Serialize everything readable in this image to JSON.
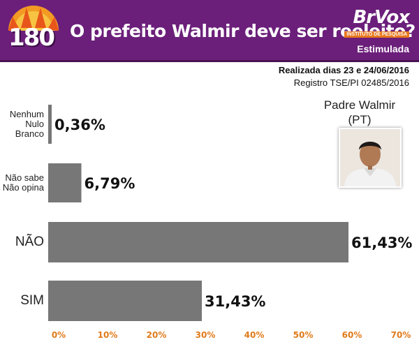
{
  "header": {
    "logo_text": "180",
    "title": "O prefeito Walmir deve ser reeleito?",
    "brand_name": "BrVox",
    "brand_sub": "INSTITUTO DE PESQUISA",
    "survey_mode": "Estimulada",
    "bg_color": "#6b1f7a"
  },
  "meta": {
    "date": "Realizada dias 23 e 24/06/2016",
    "registry": "Registro TSE/PI 02485/2016"
  },
  "candidate": {
    "name": "Padre Walmir",
    "party": "(PT)"
  },
  "chart_data": {
    "type": "bar",
    "orientation": "horizontal",
    "categories": [
      "Nenhum\nNulo\nBranco",
      "Não sabe\nNão opina",
      "NÃO",
      "SIM"
    ],
    "values": [
      0.36,
      6.79,
      61.43,
      31.43
    ],
    "value_labels": [
      "0,36%",
      "6,79%",
      "61,43%",
      "31,43%"
    ],
    "xlim": [
      0,
      70
    ],
    "xticks": [
      0,
      10,
      20,
      30,
      40,
      50,
      60,
      70
    ],
    "xtick_labels": [
      "0%",
      "10%",
      "20%",
      "30%",
      "40%",
      "50%",
      "60%",
      "70%"
    ],
    "bar_color": "#777777",
    "tick_color": "#e07b1a",
    "grid": false
  }
}
